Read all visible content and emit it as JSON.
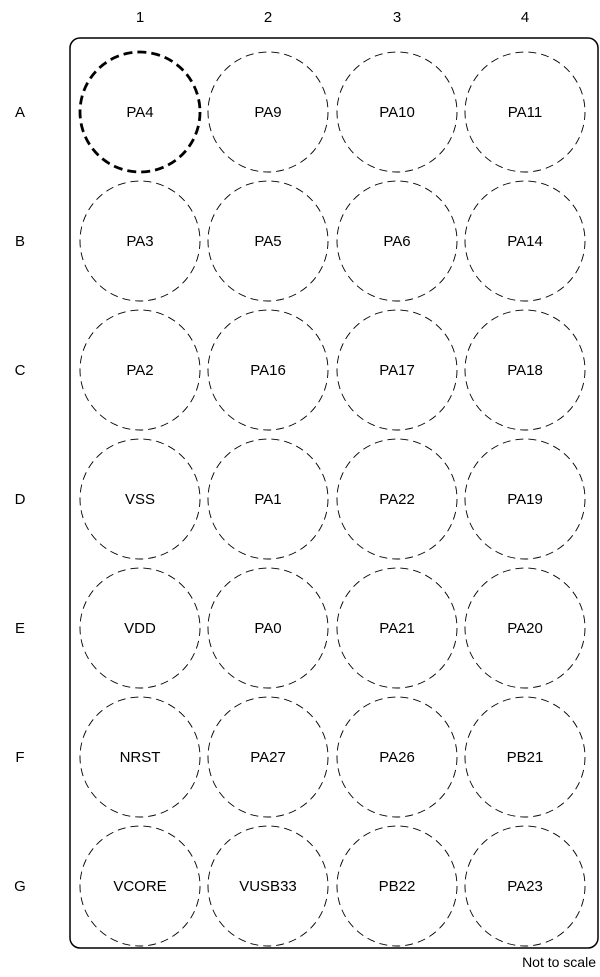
{
  "columns": [
    "1",
    "2",
    "3",
    "4"
  ],
  "rows": [
    {
      "label": "A",
      "pads": [
        "PA4",
        "PA9",
        "PA10",
        "PA11"
      ]
    },
    {
      "label": "B",
      "pads": [
        "PA3",
        "PA5",
        "PA6",
        "PA14"
      ]
    },
    {
      "label": "C",
      "pads": [
        "PA2",
        "PA16",
        "PA17",
        "PA18"
      ]
    },
    {
      "label": "D",
      "pads": [
        "VSS",
        "PA1",
        "PA22",
        "PA19"
      ]
    },
    {
      "label": "E",
      "pads": [
        "VDD",
        "PA0",
        "PA21",
        "PA20"
      ]
    },
    {
      "label": "F",
      "pads": [
        "NRST",
        "PA27",
        "PA26",
        "PB21"
      ]
    },
    {
      "label": "G",
      "pads": [
        "VCORE",
        "VUSB33",
        "PB22",
        "PA23"
      ]
    }
  ],
  "pin1_marker": {
    "row": "A",
    "column": "1"
  },
  "footnote": "Not to scale"
}
